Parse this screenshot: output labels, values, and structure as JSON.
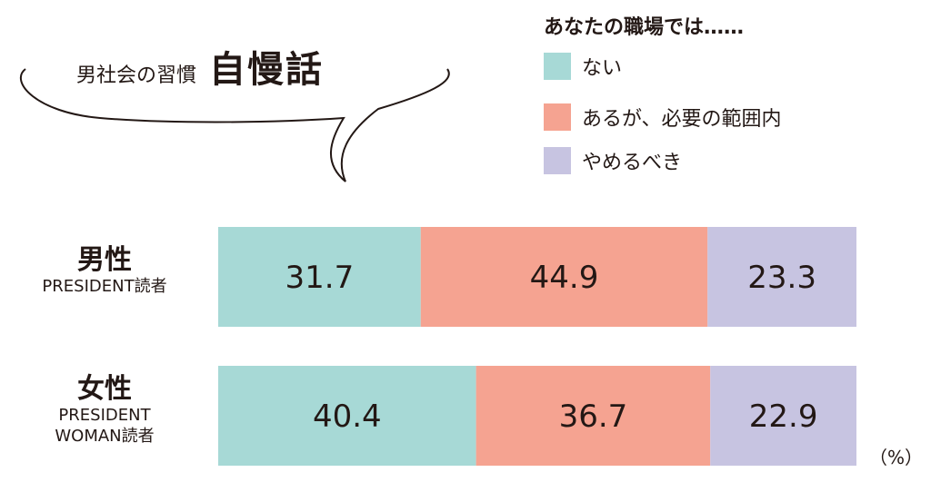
{
  "bubble": {
    "subtitle": "男社会の習慣",
    "title": "自慢話"
  },
  "legend": {
    "title": "あなたの職場では……",
    "items": [
      {
        "label": "ない",
        "color": "#a7d9d6"
      },
      {
        "label": "あるが、必要の範囲内",
        "color": "#f5a391"
      },
      {
        "label": "やめるべき",
        "color": "#c7c4e1"
      }
    ]
  },
  "rows": [
    {
      "main": "男性",
      "sub": [
        "PRESIDENT読者"
      ]
    },
    {
      "main": "女性",
      "sub": [
        "PRESIDENT",
        "WOMAN読者"
      ]
    }
  ],
  "unit": "（%）",
  "chart_data": {
    "type": "bar",
    "orientation": "horizontal",
    "stacked": true,
    "categories": [
      "男性 PRESIDENT読者",
      "女性 PRESIDENT WOMAN読者"
    ],
    "series": [
      {
        "name": "ない",
        "values": [
          31.7,
          40.4
        ],
        "color": "#a7d9d6"
      },
      {
        "name": "あるが、必要の範囲内",
        "values": [
          44.9,
          36.7
        ],
        "color": "#f5a391"
      },
      {
        "name": "やめるべき",
        "values": [
          23.3,
          22.9
        ],
        "color": "#c7c4e1"
      }
    ],
    "value_labels": [
      [
        "31.7",
        "44.9",
        "23.3"
      ],
      [
        "40.4",
        "36.7",
        "22.9"
      ]
    ],
    "xlim": [
      0,
      100
    ],
    "grid": false,
    "legend_position": "top-right"
  }
}
